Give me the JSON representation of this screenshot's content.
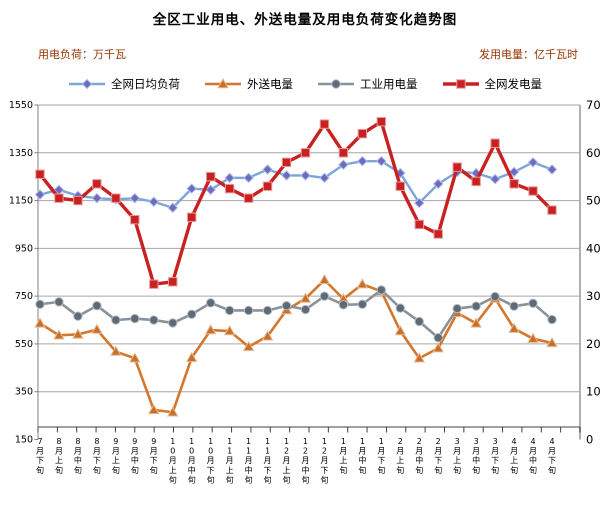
{
  "title": "全区工业用电、外送电量及用电负荷变化趋势图",
  "left_axis_unit_label": "用电负荷：万千瓦",
  "right_axis_unit_label": "发用电量：亿千瓦时",
  "legend": {
    "items": [
      {
        "label": "全网日均负荷"
      },
      {
        "label": "外送电量"
      },
      {
        "label": "工业用电量"
      },
      {
        "label": "全网发电量"
      }
    ]
  },
  "chart_data": {
    "type": "line",
    "title": "全区工业用电、外送电量及用电负荷变化趋势图",
    "categories": [
      "7月下旬",
      "8月上旬",
      "8月中旬",
      "8月下旬",
      "9月上旬",
      "9月中旬",
      "9月下旬",
      "10月上旬",
      "10月中旬",
      "10月下旬",
      "11月上旬",
      "11月中旬",
      "11月下旬",
      "12月上旬",
      "12月中旬",
      "12月下旬",
      "1月上旬",
      "1月中旬",
      "1月下旬",
      "2月上旬",
      "2月中旬",
      "2月下旬",
      "3月上旬",
      "3月中旬",
      "3月下旬",
      "4月上旬",
      "4月中旬",
      "4月下旬"
    ],
    "left_axis": {
      "label": "用电负荷：万千瓦",
      "min": 150,
      "max": 1550,
      "step": 200,
      "ticks": [
        1550,
        1350,
        1150,
        950,
        750,
        550,
        350,
        150
      ]
    },
    "right_axis": {
      "label": "发用电量：亿千瓦时",
      "min": 0,
      "max": 70,
      "step": 10,
      "ticks": [
        70,
        60,
        50,
        40,
        30,
        20,
        10,
        0
      ]
    },
    "grid": true,
    "legend_position": "top",
    "series": [
      {
        "name": "全网日均负荷",
        "axis": "left",
        "marker": "diamond",
        "line_color": "#7CA6D8",
        "marker_color": "#6E6BBF",
        "marker_edge": "#aebfe8",
        "line_width": 2.4,
        "values": [
          1175,
          1195,
          1170,
          1160,
          1155,
          1160,
          1145,
          1120,
          1200,
          1195,
          1245,
          1245,
          1280,
          1255,
          1255,
          1245,
          1300,
          1315,
          1315,
          1265,
          1140,
          1220,
          1270,
          1265,
          1240,
          1270,
          1310,
          1280
        ]
      },
      {
        "name": "外送电量",
        "axis": "right",
        "marker": "triangle",
        "line_color": "#D4762B",
        "marker_color": "#C96F2E",
        "marker_edge": "#e8b98c",
        "line_width": 2.6,
        "values": [
          24.3,
          21.8,
          22,
          23,
          18.4,
          17,
          6.2,
          5.7,
          17.1,
          22.9,
          22.7,
          19.4,
          21.6,
          27.1,
          29.5,
          33.4,
          29.4,
          32.5,
          31,
          22.7,
          17,
          19.1,
          26.5,
          24.3,
          29.5,
          23.2,
          21.1,
          20.2
        ]
      },
      {
        "name": "工业用电量",
        "axis": "right",
        "marker": "circle",
        "line_color": "#8A9299",
        "marker_color": "#5E6B76",
        "marker_edge": "#b4bcc4",
        "line_width": 2.6,
        "values": [
          28.3,
          28.8,
          25.8,
          28,
          25,
          25.3,
          25,
          24.4,
          26.2,
          28.6,
          27,
          27,
          27,
          28,
          27.2,
          30,
          28.2,
          28.3,
          31.3,
          27.5,
          24.7,
          21.3,
          27.4,
          27.9,
          29.9,
          27.9,
          28.5,
          25.1
        ]
      },
      {
        "name": "全网发电量",
        "axis": "right",
        "marker": "square",
        "line_color": "#C92121",
        "marker_color": "#C92121",
        "marker_edge": "#e59a9a",
        "line_width": 3.4,
        "values": [
          55.5,
          50.5,
          50,
          53.5,
          50.5,
          46,
          32.5,
          33,
          46.5,
          55,
          52.5,
          50.5,
          53,
          58,
          60,
          66,
          60,
          64,
          66.5,
          53,
          45,
          43,
          57,
          54,
          62,
          53.5,
          52,
          48
        ]
      }
    ]
  },
  "colors": {
    "grid": "#a6a6a6",
    "axis": "#808080",
    "unit_text": "#993300",
    "tick_text": "#000000"
  }
}
